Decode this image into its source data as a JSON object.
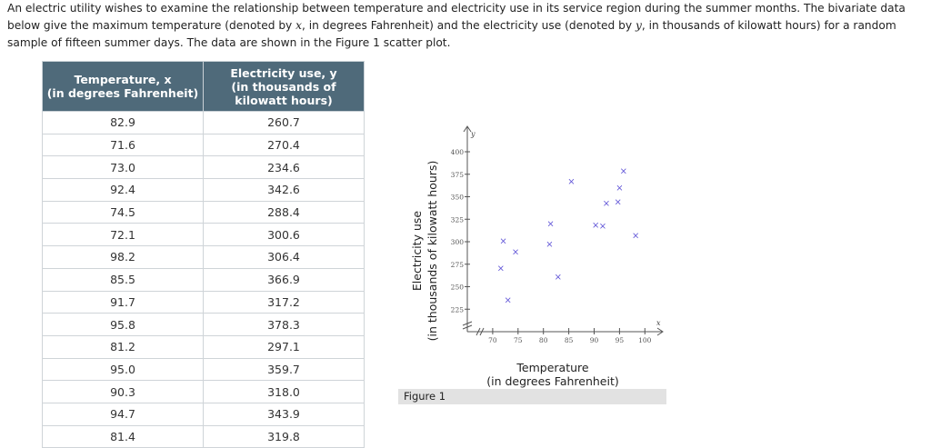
{
  "intro": {
    "part1": "An electric utility wishes to examine the relationship between temperature and electricity use in its service region during the summer months. The bivariate data below give the maximum temperature (denoted by ",
    "var_x": "x",
    "part2": ", in degrees Fahrenheit) and the electricity use (denoted by ",
    "var_y": "y",
    "part3": ", in thousands of kilowatt hours) for a random sample of fifteen summer days. The data are shown in the Figure 1 scatter plot."
  },
  "table": {
    "header_x_line1": "Temperature, x",
    "header_x_line2": "(in degrees Fahrenheit)",
    "header_y_line1": "Electricity use, y",
    "header_y_line2": "(in thousands of",
    "header_y_line3": "kilowatt hours)"
  },
  "figure": {
    "caption": "Figure 1",
    "ylabel_line1": "Electricity use",
    "ylabel_line2": "(in thousands of kilowatt hours)",
    "xlabel_line1": "Temperature",
    "xlabel_line2": "(in degrees Fahrenheit)",
    "x_axis_letter": "x",
    "y_axis_letter": "y",
    "marker": "×",
    "marker_color": "#5b4fd6"
  },
  "chart_data": {
    "type": "scatter",
    "x": [
      82.9,
      71.6,
      73.0,
      92.4,
      74.5,
      72.1,
      98.2,
      85.5,
      91.7,
      95.8,
      81.2,
      95.0,
      90.3,
      94.7,
      81.4
    ],
    "y": [
      260.7,
      270.4,
      234.6,
      342.6,
      288.4,
      300.6,
      306.4,
      366.9,
      317.2,
      378.3,
      297.1,
      359.7,
      318.0,
      343.9,
      319.8
    ],
    "xticks": [
      70,
      75,
      80,
      85,
      90,
      95,
      100
    ],
    "yticks": [
      225,
      250,
      275,
      300,
      325,
      350,
      375,
      400
    ],
    "xlim": [
      65,
      105
    ],
    "ylim": [
      200,
      415
    ],
    "axis_break": true,
    "grid": false
  }
}
